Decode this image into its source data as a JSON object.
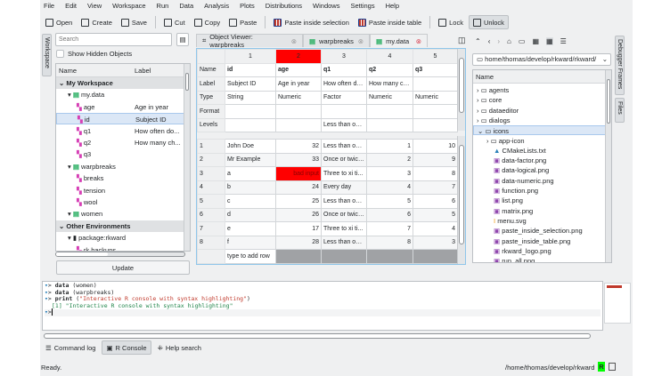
{
  "menu": [
    "File",
    "Edit",
    "View",
    "Workspace",
    "Run",
    "Data",
    "Analysis",
    "Plots",
    "Distributions",
    "Windows",
    "Settings",
    "Help"
  ],
  "toolbar": [
    {
      "label": "Open",
      "icon": "folder-icon"
    },
    {
      "label": "Create",
      "icon": "new-file-icon"
    },
    {
      "label": "Save",
      "icon": "save-icon"
    },
    {
      "label": "Cut",
      "icon": "scissors-icon"
    },
    {
      "label": "Copy",
      "icon": "copy-icon"
    },
    {
      "label": "Paste",
      "icon": "clipboard-icon"
    },
    {
      "label": "Paste inside selection",
      "icon": "paste-selection-icon"
    },
    {
      "label": "Paste inside table",
      "icon": "paste-table-icon"
    },
    {
      "label": "Lock",
      "icon": "lock-icon"
    },
    {
      "label": "Unlock",
      "icon": "unlock-icon",
      "active": true
    }
  ],
  "left": {
    "vtab": "Workspace",
    "search_placeholder": "Search",
    "show_hidden": "Show Hidden Objects",
    "col_name": "Name",
    "col_label": "Label",
    "update": "Update",
    "rows": [
      {
        "t": "My Workspace",
        "sect": true
      },
      {
        "t": "my.data",
        "lvl": 1
      },
      {
        "t": "age",
        "l": "Age in year",
        "lvl": 2
      },
      {
        "t": "id",
        "l": "Subject ID",
        "lvl": 2,
        "sel": true
      },
      {
        "t": "q1",
        "l": "How often do...",
        "lvl": 2
      },
      {
        "t": "q2",
        "l": "How many ch...",
        "lvl": 2
      },
      {
        "t": "q3",
        "lvl": 2
      },
      {
        "t": "warpbreaks",
        "lvl": 1
      },
      {
        "t": "breaks",
        "lvl": 2
      },
      {
        "t": "tension",
        "lvl": 2
      },
      {
        "t": "wool",
        "lvl": 2
      },
      {
        "t": "women",
        "lvl": 1
      },
      {
        "t": "Other Environments",
        "sect": true
      },
      {
        "t": "package:rkward",
        "lvl": 1
      },
      {
        "t": "rk.backups",
        "lvl": 2
      }
    ]
  },
  "tabs": [
    {
      "label": "Object Viewer: warpbreaks"
    },
    {
      "label": "warpbreaks"
    },
    {
      "label": "my.data",
      "active": true
    }
  ],
  "editor": {
    "col_nums": [
      "1",
      "2",
      "3",
      "4",
      "5"
    ],
    "selected_col": "2",
    "meta": [
      [
        "Name",
        "id",
        "age",
        "q1",
        "q2",
        "q3"
      ],
      [
        "Label",
        "Subject ID",
        "Age in year",
        "How often do...",
        "How many ch...",
        ""
      ],
      [
        "Type",
        "String",
        "Numeric",
        "Factor",
        "Numeric",
        "Numeric"
      ],
      [
        "Format",
        "",
        "",
        "",
        "",
        ""
      ],
      [
        "Levels",
        "",
        "",
        "Less than onc...",
        "",
        ""
      ]
    ],
    "rows": [
      [
        "1",
        "John Doe",
        "32",
        "Less than onc...",
        "1",
        "10"
      ],
      [
        "2",
        "Mr Example",
        "33",
        "Once or twice...",
        "2",
        "9"
      ],
      [
        "3",
        "a",
        "bad input",
        "Three to xi ti...",
        "3",
        "8"
      ],
      [
        "4",
        "b",
        "24",
        "Every day",
        "4",
        "7"
      ],
      [
        "5",
        "c",
        "25",
        "Less than onc...",
        "5",
        "6"
      ],
      [
        "6",
        "d",
        "26",
        "Once or twice...",
        "6",
        "5"
      ],
      [
        "7",
        "e",
        "17",
        "Three to xi ti...",
        "7",
        "4"
      ],
      [
        "8",
        "f",
        "28",
        "Less than onc...",
        "8",
        "3"
      ]
    ],
    "add_row": "type to add row",
    "error_color": "#ff0000"
  },
  "files": {
    "path": "home/thomas/develop/rkward/rkward/",
    "col_name": "Name",
    "vtabs": [
      "Debugger Frames",
      "Files"
    ],
    "rows": [
      {
        "t": "agents",
        "d": 1
      },
      {
        "t": "core",
        "d": 1
      },
      {
        "t": "dataeditor",
        "d": 1
      },
      {
        "t": "dialogs",
        "d": 1
      },
      {
        "t": "icons",
        "d": 1,
        "open": true,
        "sel": true
      },
      {
        "t": "app-icon",
        "d": 1,
        "lvl": 1
      },
      {
        "t": "CMakeLists.txt",
        "lvl": 1
      },
      {
        "t": "data-factor.png",
        "lvl": 1
      },
      {
        "t": "data-logical.png",
        "lvl": 1
      },
      {
        "t": "data-numeric.png",
        "lvl": 1
      },
      {
        "t": "function.png",
        "lvl": 1
      },
      {
        "t": "list.png",
        "lvl": 1
      },
      {
        "t": "matrix.png",
        "lvl": 1
      },
      {
        "t": "menu.svg",
        "lvl": 1
      },
      {
        "t": "paste_inside_selection.png",
        "lvl": 1
      },
      {
        "t": "paste_inside_table.png",
        "lvl": 1
      },
      {
        "t": "rkward_logo.png",
        "lvl": 1
      },
      {
        "t": "run_all.png",
        "lvl": 1
      }
    ]
  },
  "console": {
    "lines": [
      {
        "p": "> ",
        "c": "data",
        "a": " (women)"
      },
      {
        "p": "> ",
        "c": "data",
        "a": " (warpbreaks)"
      },
      {
        "p": "> ",
        "c": "print",
        "a": " (",
        "s": "\"Interactive R console with syntax highlighting\"",
        "e": ")"
      },
      {
        "out": "[1] \"Interactive R console with syntax highlighting\""
      },
      {
        "p": "> "
      }
    ]
  },
  "bottom_tabs": [
    {
      "label": "Command log"
    },
    {
      "label": "R Console",
      "active": true
    },
    {
      "label": "Help search"
    }
  ],
  "status": {
    "text": "Ready.",
    "path": "/home/thomas/develop/rkward",
    "r": "R"
  }
}
